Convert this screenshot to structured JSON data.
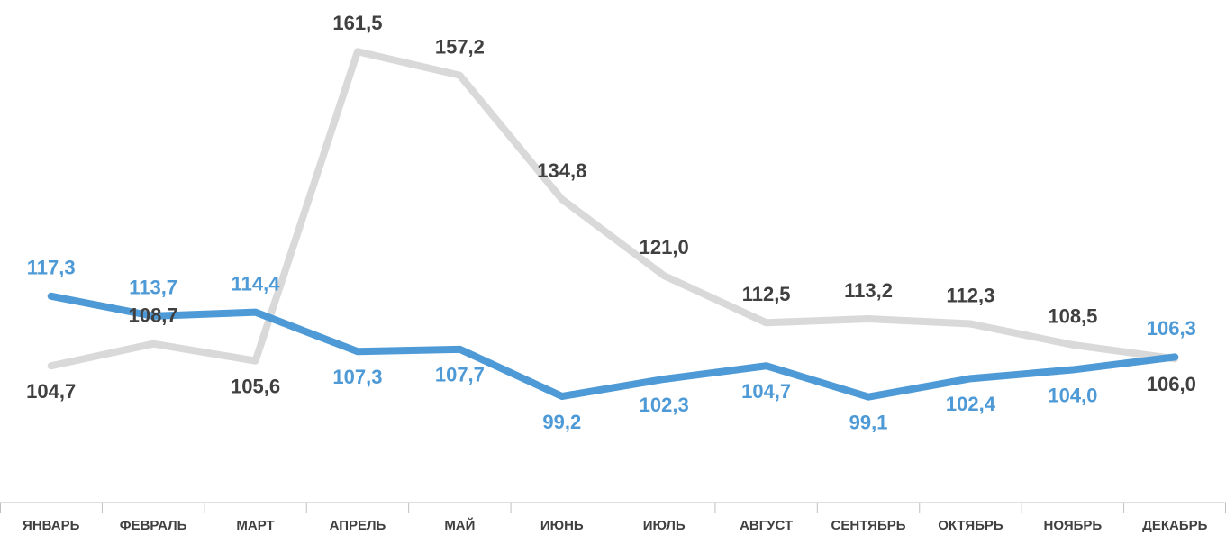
{
  "chart_data": {
    "type": "line",
    "categories": [
      "ЯНВАРЬ",
      "ФЕВРАЛЬ",
      "МАРТ",
      "АПРЕЛЬ",
      "МАЙ",
      "ИЮНЬ",
      "ИЮЛЬ",
      "АВГУСТ",
      "СЕНТЯБРЬ",
      "ОКТЯБРЬ",
      "НОЯБРЬ",
      "ДЕКАБРЬ"
    ],
    "series": [
      {
        "color": "#d9d9d9",
        "label_color": "#404040",
        "values": [
          104.7,
          108.7,
          105.6,
          161.5,
          157.2,
          134.8,
          121.0,
          112.5,
          113.2,
          112.3,
          108.5,
          106.0
        ],
        "value_labels": [
          "104,7",
          "108,7",
          "105,6",
          "161,5",
          "157,2",
          "134,8",
          "121,0",
          "112,5",
          "113,2",
          "112,3",
          "108,5",
          "106,0"
        ]
      },
      {
        "color": "#4e9ad6",
        "label_color": "#4e9ad6",
        "values": [
          117.3,
          113.7,
          114.4,
          107.3,
          107.7,
          99.2,
          102.3,
          104.7,
          99.1,
          102.4,
          104.0,
          106.3
        ],
        "value_labels": [
          "117,3",
          "113,7",
          "114,4",
          "107,3",
          "107,7",
          "99,2",
          "102,3",
          "104,7",
          "99,1",
          "102,4",
          "104,0",
          "106,3"
        ]
      }
    ],
    "ylim": [
      80,
      170
    ]
  }
}
